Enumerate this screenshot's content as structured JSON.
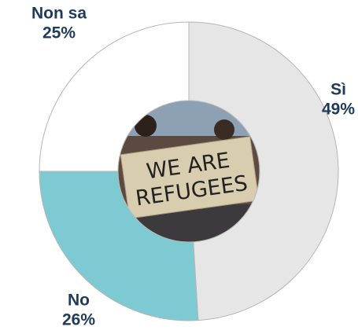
{
  "chart_data": {
    "type": "donut",
    "categories": [
      "Sì",
      "No",
      "Non sa"
    ],
    "values": [
      49,
      26,
      25
    ],
    "value_labels": [
      "49%",
      "26%",
      "25%"
    ],
    "colors": [
      "#e6e6e6",
      "#7ecad2",
      "#ffffff"
    ],
    "image_text": "WE ARE REFUGEES"
  }
}
